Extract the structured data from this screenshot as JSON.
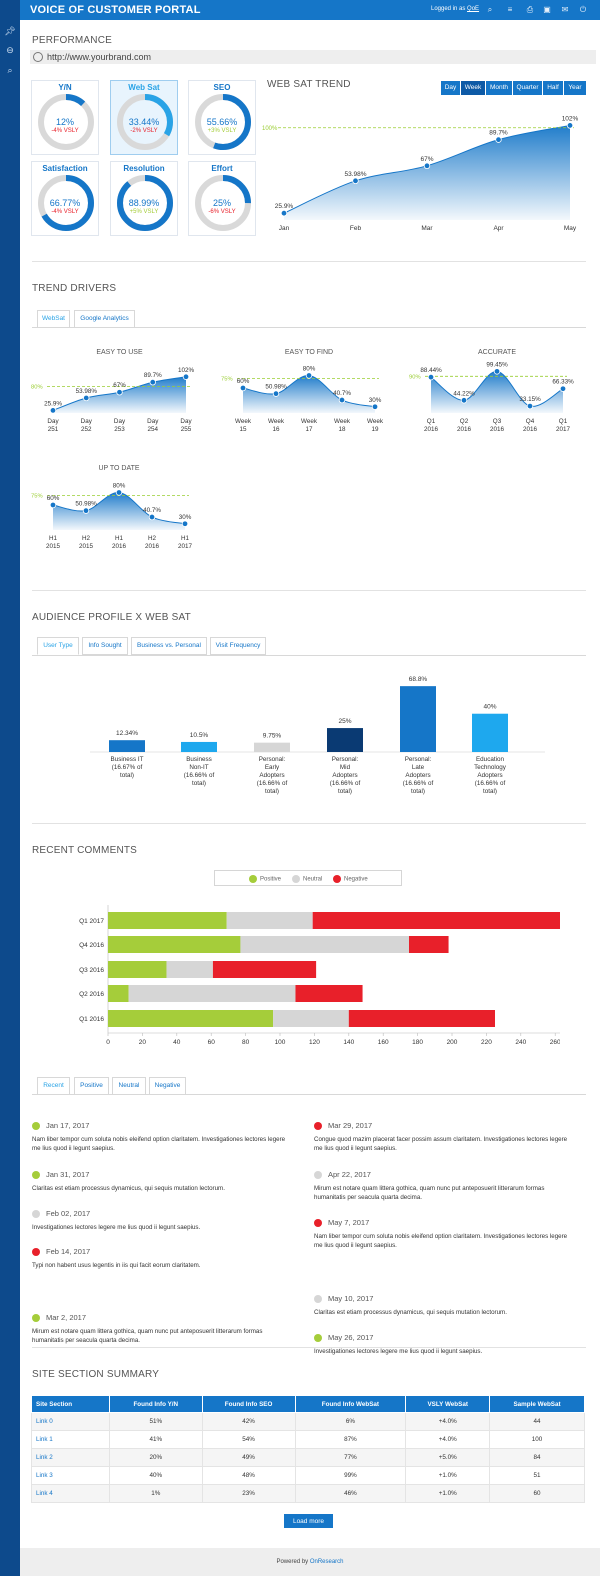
{
  "app": {
    "title": "VOICE OF CUSTOMER PORTAL",
    "login_prefix": "Logged in as",
    "login_user": "QoE"
  },
  "toolbar_icons": [
    "search-icon",
    "list-icon",
    "print-icon",
    "save-icon",
    "mail-icon",
    "power-icon"
  ],
  "sidebar_icons": [
    "pin-icon",
    "minus-circle-icon",
    "search-icon"
  ],
  "performance": {
    "title": "PERFORMANCE",
    "url": "http://www.yourbrand.com",
    "kpis": [
      {
        "label": "Y/N",
        "value": "12%",
        "delta": "-4% VSLY",
        "fraction": 0.12,
        "trend": "negative"
      },
      {
        "label": "Web Sat",
        "value": "33.44%",
        "delta": "-2% VSLY",
        "fraction": 0.3344,
        "trend": "negative"
      },
      {
        "label": "SEO",
        "value": "55.66%",
        "delta": "+3% VSLY",
        "fraction": 0.5566,
        "trend": "positive"
      },
      {
        "label": "Satisfaction",
        "value": "66.77%",
        "delta": "-4% VSLY",
        "fraction": 0.6677,
        "trend": "negative"
      },
      {
        "label": "Resolution",
        "value": "88.99%",
        "delta": "+5% VSLY",
        "fraction": 0.8899,
        "trend": "positive"
      },
      {
        "label": "Effort",
        "value": "25%",
        "delta": "-6% VSLY",
        "fraction": 0.25,
        "trend": "negative"
      }
    ],
    "trend_title": "WEB SAT TREND",
    "ranges": [
      "Day",
      "Week",
      "Month",
      "Quarter",
      "Half",
      "Year"
    ],
    "selected_range": "Week"
  },
  "trend_drivers": {
    "title": "TREND DRIVERS",
    "tabs": [
      "WebSat",
      "Google Analytics"
    ],
    "selected_tab": "WebSat"
  },
  "audience": {
    "title": "AUDIENCE PROFILE x WEB SAT",
    "tabs": [
      "User Type",
      "Info Sought",
      "Business vs. Personal",
      "Visit Frequency"
    ],
    "selected_tab": "User Type"
  },
  "recent_comments": {
    "title": "RECENT COMMENTS",
    "legend": [
      "Positive",
      "Neutral",
      "Negative"
    ],
    "tabs": [
      "Recent",
      "Positive",
      "Neutral",
      "Negative"
    ],
    "selected_tab": "Recent",
    "left": [
      {
        "date": "Jan 17, 2017",
        "sentiment": "positive",
        "text": "Nam liber tempor cum soluta nobis eleifend option claritatem. Investigationes lectores legere me lius quod ii legunt saepius."
      },
      {
        "date": "Jan 31, 2017",
        "sentiment": "positive",
        "text": "Claritas est etiam processus dynamicus, qui sequis mutation lectorum."
      },
      {
        "date": "Feb 02, 2017",
        "sentiment": "neutral",
        "text": "Investigationes lectores legere me lius quod ii legunt saepius."
      },
      {
        "date": "Feb 14, 2017",
        "sentiment": "negative",
        "text": "Typi non habent usus legentis in iis qui facit eorum claritatem."
      },
      {
        "date": "Mar 2, 2017",
        "sentiment": "positive",
        "text": "Mirum est notare quam littera gothica, quam nunc put anteposuerit litterarum formas humanitatis per seacula quarta decima."
      }
    ],
    "right": [
      {
        "date": "Mar 29, 2017",
        "sentiment": "negative",
        "text": "Congue quod mazim placerat facer possim assum claritatem. Investigationes lectores legere me lius quod ii legunt saepius."
      },
      {
        "date": "Apr 22, 2017",
        "sentiment": "neutral",
        "text": "Mirum est notare quam littera gothica, quam nunc put anteposuerit litterarum formas humanitatis per seacula quarta decima."
      },
      {
        "date": "May 7, 2017",
        "sentiment": "negative",
        "text": "Nam liber tempor cum soluta nobis eleifend option claritatem. Investigationes lectores legere me lius quod ii legunt saepius."
      },
      {
        "date": "May 10, 2017",
        "sentiment": "neutral",
        "text": "Claritas est etiam processus dynamicus, qui sequis mutation lectorum."
      },
      {
        "date": "May 26, 2017",
        "sentiment": "positive",
        "text": "Investigationes lectores legere me lius quod ii legunt saepius."
      }
    ]
  },
  "site_summary": {
    "title": "SITE SECTION SUMMARY",
    "columns": [
      "Site Section",
      "Found Info Y/N",
      "Found Info SEO",
      "Found Info WebSat",
      "VSLY WebSat",
      "Sample WebSat"
    ],
    "rows": [
      [
        "Link 0",
        "51%",
        "42%",
        "6%",
        "+4.0%",
        "44"
      ],
      [
        "Link 1",
        "41%",
        "54%",
        "87%",
        "+4.0%",
        "100"
      ],
      [
        "Link 2",
        "20%",
        "49%",
        "77%",
        "+5.0%",
        "84"
      ],
      [
        "Link 3",
        "40%",
        "48%",
        "99%",
        "+1.0%",
        "51"
      ],
      [
        "Link 4",
        "1%",
        "23%",
        "46%",
        "+1.0%",
        "60"
      ]
    ],
    "load_more": "Load more"
  },
  "footer": {
    "prefix": "Powered by",
    "brand": "OnResearch"
  },
  "colors": {
    "brand": "#1576c8",
    "accent": "#29a3e6",
    "positive": "#a5cd3a",
    "neutral": "#d6d6d6",
    "negative": "#e8202a",
    "target": "#9acd32"
  },
  "chart_data": [
    {
      "type": "area",
      "title": "WEB SAT TREND",
      "x": [
        "Jan",
        "Feb",
        "Mar",
        "Apr",
        "May"
      ],
      "values": [
        25.9,
        53.98,
        67,
        89.7,
        102
      ],
      "labels": [
        "25.9%",
        "53.98%",
        "67%",
        "89.7%",
        "102%"
      ],
      "target": 100,
      "target_label": "100%",
      "ylim": [
        20,
        105
      ]
    },
    {
      "type": "area",
      "title": "EASY TO USE",
      "x": [
        "Day 251",
        "Day 252",
        "Day 253",
        "Day 254",
        "Day 255"
      ],
      "values": [
        25.9,
        53.98,
        67,
        89.7,
        102
      ],
      "labels": [
        "25.9%",
        "53.98%",
        "67%",
        "89.7%",
        "102%"
      ],
      "target": 80,
      "target_label": "80%",
      "ylim": [
        20,
        106
      ]
    },
    {
      "type": "area",
      "title": "EASY TO FIND",
      "x": [
        "Week 15",
        "Week 16",
        "Week 17",
        "Week 18",
        "Week 19"
      ],
      "values": [
        60,
        50.98,
        80,
        40.7,
        30
      ],
      "labels": [
        "60%",
        "50.98%",
        "80%",
        "40.7%",
        "30%"
      ],
      "target": 75,
      "target_label": "75%",
      "ylim": [
        20,
        84
      ]
    },
    {
      "type": "area",
      "title": "ACCURATE",
      "x": [
        "Q1 2016",
        "Q2 2016",
        "Q3 2016",
        "Q4 2016",
        "Q1 2017"
      ],
      "values": [
        88.44,
        44.22,
        99.45,
        33.15,
        66.33
      ],
      "labels": [
        "88.44%",
        "44.22%",
        "99.45%",
        "33.15%",
        "66.33%"
      ],
      "target": 90,
      "target_label": "90%",
      "ylim": [
        20,
        104
      ]
    },
    {
      "type": "area",
      "title": "UP TO DATE",
      "x": [
        "H1 2015",
        "H2 2015",
        "H1 2016",
        "H2 2016",
        "H1 2017"
      ],
      "values": [
        60,
        50.98,
        80,
        40.7,
        30
      ],
      "labels": [
        "60%",
        "50.98%",
        "80%",
        "40.7%",
        "30%"
      ],
      "target": 75,
      "target_label": "75%",
      "ylim": [
        20,
        84
      ]
    },
    {
      "type": "bar",
      "title": "AUDIENCE PROFILE x WEB SAT",
      "categories": [
        "Business IT (16.67% of total)",
        "Business Non-IT (16.66% of total)",
        "Personal: Early Adopters (16.66% of total)",
        "Personal: Mid Adopters (16.66% of total)",
        "Personal: Late Adopters (16.66% of total)",
        "Education Technology Adopters (16.66% of total)"
      ],
      "category_lines": [
        [
          "Business IT",
          "(16.67% of",
          "total)"
        ],
        [
          "Business",
          "Non-IT",
          "(16.66% of",
          "total)"
        ],
        [
          "Personal:",
          "Early",
          "Adopters",
          "(16.66% of",
          "total)"
        ],
        [
          "Personal:",
          "Mid",
          "Adopters",
          "(16.66% of",
          "total)"
        ],
        [
          "Personal:",
          "Late",
          "Adopters",
          "(16.66% of",
          "total)"
        ],
        [
          "Education",
          "Technology",
          "Adopters",
          "(16.66% of",
          "total)"
        ]
      ],
      "values": [
        12.34,
        10.5,
        9.75,
        25,
        68.8,
        40
      ],
      "labels": [
        "12.34%",
        "10.5%",
        "9.75%",
        "25%",
        "68.8%",
        "40%"
      ],
      "colors": [
        "#1576c8",
        "#1ea8ee",
        "#d6d6d6",
        "#0a3a73",
        "#1576c8",
        "#1ea8ee"
      ],
      "ylim": [
        0,
        70
      ]
    },
    {
      "type": "bar",
      "orientation": "horizontal",
      "stacked": true,
      "title": "RECENT COMMENTS",
      "categories": [
        "Q1 2017",
        "Q4 2016",
        "Q3 2016",
        "Q2 2016",
        "Q1 2016"
      ],
      "series": [
        {
          "name": "Positive",
          "values": [
            69,
            77,
            34,
            12,
            96
          ]
        },
        {
          "name": "Neutral",
          "values": [
            50,
            98,
            27,
            97,
            44
          ]
        },
        {
          "name": "Negative",
          "values": [
            156,
            23,
            60,
            39,
            85
          ]
        }
      ],
      "xticks": [
        0,
        20,
        40,
        60,
        80,
        100,
        120,
        140,
        160,
        180,
        200,
        220,
        240,
        260
      ],
      "xlim": [
        0,
        275
      ],
      "legend": "top"
    }
  ]
}
